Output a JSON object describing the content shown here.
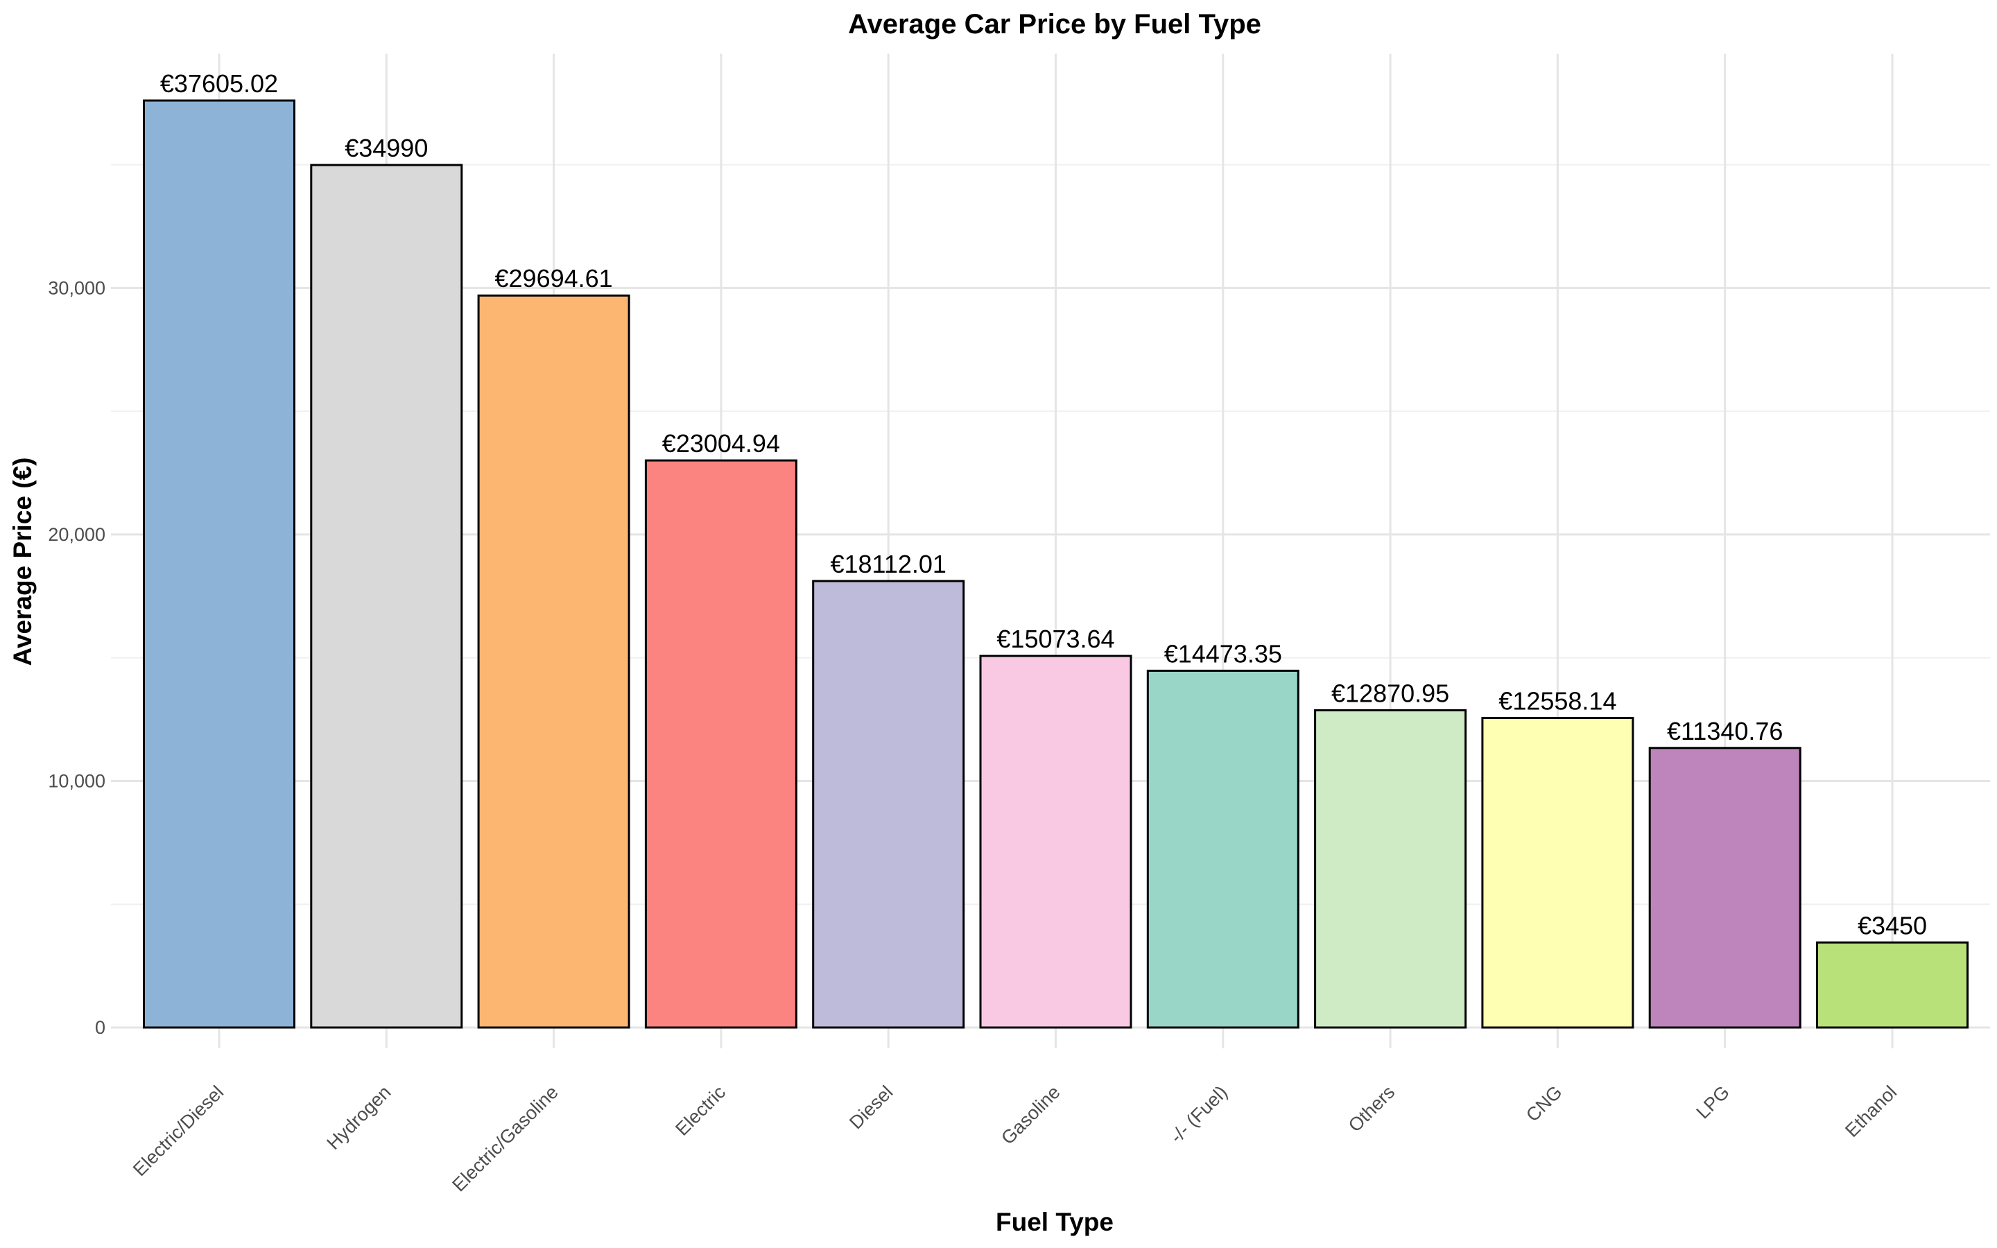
{
  "chart_data": {
    "type": "bar",
    "title": "Average Car Price by Fuel Type",
    "xlabel": "Fuel Type",
    "ylabel": "Average Price (€)",
    "categories": [
      "Electric/Diesel",
      "Hydrogen",
      "Electric/Gasoline",
      "Electric",
      "Diesel",
      "Gasoline",
      "-/- (Fuel)",
      "Others",
      "CNG",
      "LPG",
      "Ethanol"
    ],
    "values": [
      37605.02,
      34990,
      29694.61,
      23004.94,
      18112.01,
      15073.64,
      14473.35,
      12870.95,
      12558.14,
      11340.76,
      3450
    ],
    "data_labels": [
      "€37605.02",
      "€34990",
      "€29694.61",
      "€23004.94",
      "€18112.01",
      "€15073.64",
      "€14473.35",
      "€12870.95",
      "€12558.14",
      "€11340.76",
      "€3450"
    ],
    "colors": [
      "#8DB3D6",
      "#D9D9D9",
      "#FDB672",
      "#FB8480",
      "#BEBADA",
      "#F9C9E3",
      "#99D6C8",
      "#CFEBC6",
      "#FFFFB3",
      "#BE84BC",
      "#B8E17A"
    ],
    "y_ticks": [
      0,
      10000,
      20000,
      30000
    ],
    "y_tick_labels": [
      "0",
      "10,000",
      "20,000",
      "30,000"
    ],
    "ylim": [
      0,
      39500
    ],
    "grid": true,
    "legend": "none"
  }
}
